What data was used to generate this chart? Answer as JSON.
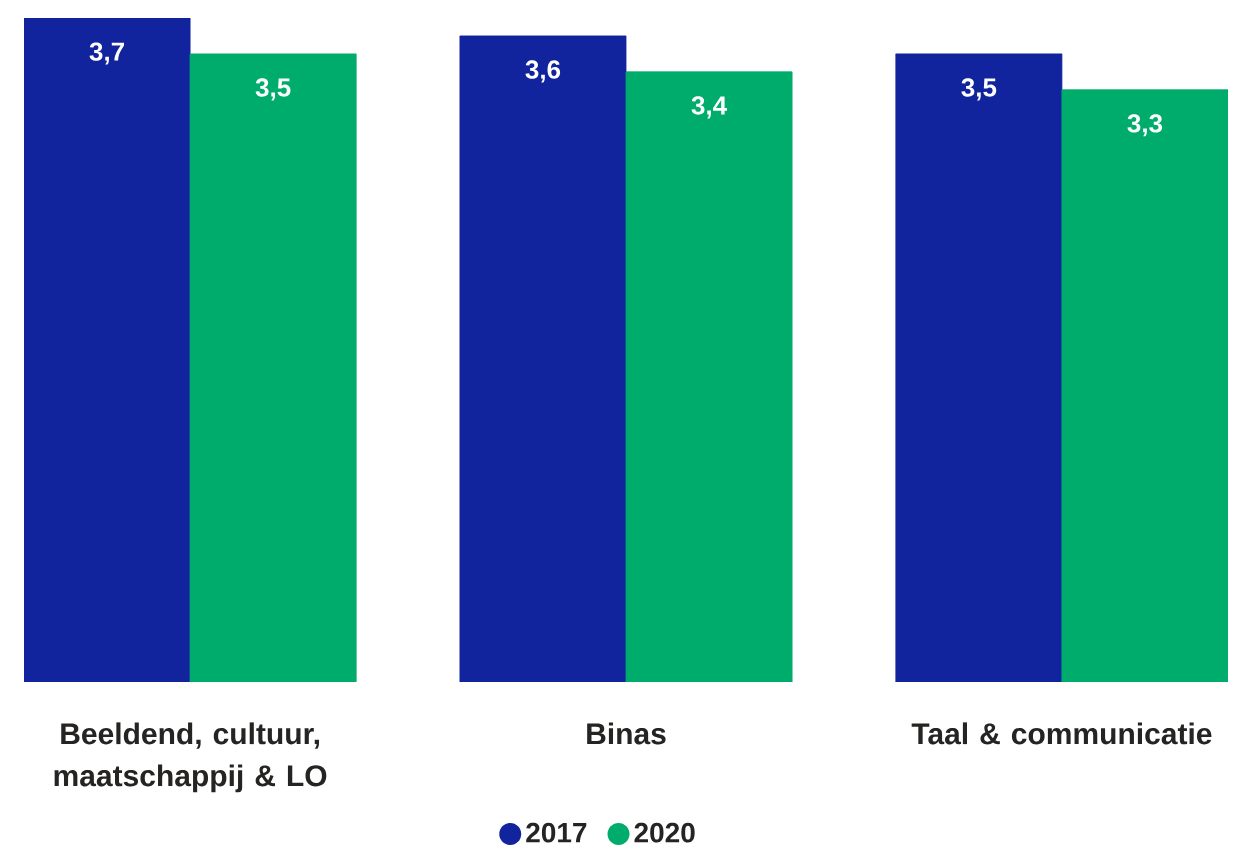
{
  "chart_data": {
    "type": "bar",
    "categories": [
      "Beeldend, cultuur, maatschappij & LO",
      "Binas",
      "Taal & communicatie"
    ],
    "series": [
      {
        "name": "2017",
        "color": "#12239e",
        "values": [
          3.7,
          3.6,
          3.5
        ],
        "value_labels": [
          "3,7",
          "3,6",
          "3,5"
        ]
      },
      {
        "name": "2020",
        "color": "#00ac6b",
        "values": [
          3.5,
          3.4,
          3.3
        ],
        "value_labels": [
          "3,5",
          "3,4",
          "3,3"
        ]
      }
    ],
    "ylim": [
      0,
      3.7
    ],
    "tick_labels": "x",
    "legend": "bottom"
  }
}
